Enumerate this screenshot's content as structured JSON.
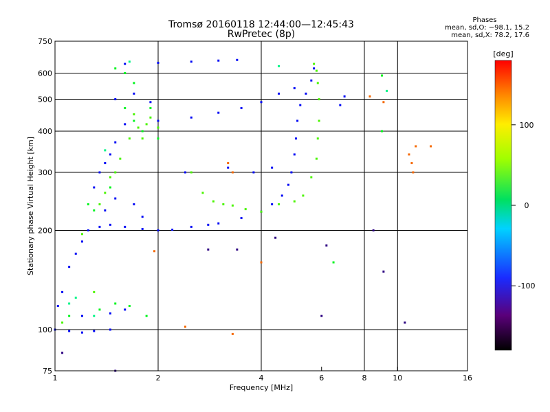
{
  "header": {
    "title_line1": "Tromsø 20160118 12:44:00—12:45:43",
    "title_line2": "RwPretec (8p)"
  },
  "stats": {
    "heading": "Phases",
    "line1": "mean, sd,O: −98.1, 15.2",
    "line2": "mean, sd,X:  78.2, 17.6"
  },
  "chart_data": {
    "type": "scatter",
    "xlabel": "Frequency [MHz]",
    "ylabel": "Stationary phase Virtual Height [km]",
    "x_scale": "log",
    "y_scale": "log",
    "xlim": [
      1,
      16
    ],
    "ylim": [
      75,
      750
    ],
    "x_ticks": [
      1,
      2,
      4,
      6,
      8,
      10,
      16
    ],
    "y_ticks": [
      75,
      100,
      200,
      300,
      400,
      500,
      600,
      750
    ],
    "x_grid": [
      2,
      4,
      8,
      10
    ],
    "y_grid": [
      100,
      200,
      300,
      400,
      500,
      600
    ],
    "colorbar": {
      "label": "[deg]",
      "range": [
        -180,
        180
      ],
      "ticks": [
        100,
        0,
        -100
      ]
    },
    "series": [
      {
        "phase": -100,
        "points": [
          [
            1.0,
            100
          ],
          [
            1.1,
            99
          ],
          [
            1.2,
            98
          ],
          [
            1.3,
            99
          ],
          [
            1.45,
            100
          ],
          [
            1.02,
            118
          ],
          [
            1.05,
            130
          ],
          [
            1.1,
            155
          ],
          [
            1.15,
            170
          ],
          [
            1.2,
            185
          ],
          [
            1.25,
            200
          ],
          [
            1.35,
            205
          ],
          [
            1.45,
            208
          ],
          [
            1.6,
            205
          ],
          [
            1.8,
            202
          ],
          [
            2.0,
            200
          ],
          [
            2.2,
            201
          ],
          [
            2.5,
            205
          ],
          [
            2.8,
            208
          ],
          [
            3.0,
            210
          ],
          [
            3.5,
            218
          ],
          [
            4.0,
            228
          ],
          [
            4.3,
            240
          ],
          [
            4.6,
            255
          ],
          [
            4.8,
            275
          ],
          [
            4.9,
            300
          ],
          [
            5.0,
            340
          ],
          [
            5.05,
            380
          ],
          [
            5.1,
            430
          ],
          [
            5.2,
            480
          ],
          [
            5.4,
            520
          ],
          [
            5.6,
            570
          ],
          [
            5.7,
            620
          ],
          [
            1.3,
            270
          ],
          [
            1.35,
            300
          ],
          [
            1.4,
            320
          ],
          [
            1.45,
            340
          ],
          [
            1.5,
            370
          ],
          [
            1.6,
            420
          ],
          [
            2.0,
            430
          ],
          [
            2.5,
            440
          ],
          [
            3.0,
            455
          ],
          [
            3.5,
            470
          ],
          [
            4.0,
            490
          ],
          [
            4.5,
            520
          ],
          [
            5.0,
            540
          ],
          [
            1.6,
            640
          ],
          [
            2.0,
            645
          ],
          [
            2.5,
            650
          ],
          [
            3.0,
            655
          ],
          [
            3.4,
            658
          ],
          [
            1.5,
            500
          ],
          [
            1.7,
            520
          ],
          [
            1.9,
            490
          ],
          [
            1.2,
            110
          ],
          [
            1.45,
            112
          ],
          [
            1.6,
            115
          ],
          [
            1.4,
            230
          ],
          [
            1.5,
            250
          ],
          [
            1.7,
            240
          ],
          [
            1.8,
            220
          ],
          [
            2.4,
            300
          ],
          [
            3.2,
            310
          ],
          [
            3.8,
            300
          ],
          [
            4.3,
            310
          ],
          [
            6.8,
            480
          ],
          [
            7.0,
            510
          ]
        ]
      },
      {
        "phase": 60,
        "points": [
          [
            1.35,
            240
          ],
          [
            1.4,
            260
          ],
          [
            1.45,
            290
          ],
          [
            1.55,
            330
          ],
          [
            1.65,
            380
          ],
          [
            1.75,
            410
          ],
          [
            1.85,
            420
          ],
          [
            2.0,
            410
          ],
          [
            2.5,
            300
          ],
          [
            2.7,
            260
          ],
          [
            2.9,
            245
          ],
          [
            3.1,
            240
          ],
          [
            3.3,
            238
          ],
          [
            3.6,
            232
          ],
          [
            4.0,
            228
          ],
          [
            4.5,
            240
          ],
          [
            5.0,
            245
          ],
          [
            5.3,
            255
          ],
          [
            5.6,
            290
          ],
          [
            5.8,
            330
          ],
          [
            5.85,
            380
          ],
          [
            5.9,
            430
          ],
          [
            5.9,
            500
          ],
          [
            5.85,
            560
          ],
          [
            5.8,
            610
          ],
          [
            5.7,
            640
          ],
          [
            1.05,
            105
          ],
          [
            1.3,
            130
          ],
          [
            1.2,
            195
          ],
          [
            1.7,
            450
          ],
          [
            1.9,
            440
          ],
          [
            1.8,
            380
          ],
          [
            1.5,
            300
          ]
        ]
      },
      {
        "phase": 30,
        "points": [
          [
            1.25,
            240
          ],
          [
            1.3,
            230
          ],
          [
            1.45,
            270
          ],
          [
            1.6,
            470
          ],
          [
            1.7,
            430
          ],
          [
            1.8,
            400
          ],
          [
            1.9,
            470
          ],
          [
            2.0,
            380
          ],
          [
            1.1,
            110
          ],
          [
            1.35,
            115
          ],
          [
            1.5,
            120
          ],
          [
            1.65,
            118
          ],
          [
            1.85,
            110
          ],
          [
            1.6,
            600
          ],
          [
            1.7,
            560
          ],
          [
            1.5,
            620
          ],
          [
            6.5,
            160
          ],
          [
            9.0,
            590
          ],
          [
            9.0,
            400
          ]
        ]
      },
      {
        "phase": 0,
        "points": [
          [
            1.1,
            120
          ],
          [
            1.15,
            125
          ],
          [
            1.3,
            110
          ],
          [
            1.4,
            350
          ],
          [
            1.65,
            650
          ],
          [
            4.5,
            630
          ],
          [
            9.3,
            530
          ]
        ]
      },
      {
        "phase": 150,
        "points": [
          [
            3.2,
            320
          ],
          [
            3.3,
            300
          ],
          [
            10.8,
            340
          ],
          [
            11.0,
            320
          ],
          [
            11.1,
            300
          ],
          [
            11.3,
            360
          ],
          [
            12.5,
            360
          ],
          [
            8.3,
            510
          ],
          [
            9.1,
            490
          ],
          [
            1.95,
            173
          ],
          [
            2.4,
            102
          ],
          [
            3.3,
            97
          ],
          [
            4.0,
            160
          ]
        ]
      },
      {
        "phase": -150,
        "points": [
          [
            1.05,
            85
          ],
          [
            1.5,
            75
          ],
          [
            10.5,
            105
          ],
          [
            2.8,
            175
          ],
          [
            3.4,
            175
          ],
          [
            4.4,
            190
          ],
          [
            6.0,
            110
          ],
          [
            8.5,
            200
          ],
          [
            9.1,
            150
          ],
          [
            6.2,
            180
          ]
        ]
      }
    ]
  }
}
